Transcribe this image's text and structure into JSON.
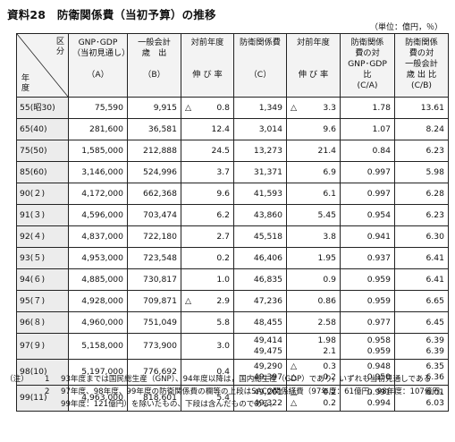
{
  "title": "資料28　防衛関係費（当初予算）の推移",
  "unit": "（単位：億円，％）",
  "header": {
    "diag_top": [
      "区",
      "分"
    ],
    "diag_bottom": [
      "年",
      "度"
    ],
    "columns": [
      {
        "lines": [
          "GNP･GDP",
          "（当初見通し）",
          "",
          "（A）"
        ]
      },
      {
        "lines": [
          "一般会計",
          "歳　出",
          "",
          "（B）"
        ]
      },
      {
        "lines": [
          "対前年度",
          "",
          "",
          "伸 び 率"
        ]
      },
      {
        "lines": [
          "防衛関係費",
          "",
          "",
          "（C）"
        ]
      },
      {
        "lines": [
          "対前年度",
          "",
          "",
          "伸 び 率"
        ]
      },
      {
        "lines": [
          "防衛関係",
          "費の対",
          "GNP･GDP",
          "比",
          "(C/A)"
        ]
      },
      {
        "lines": [
          "防衛関係",
          "費の対",
          "一般会計",
          "歳 出 比",
          "(C/B)"
        ]
      }
    ]
  },
  "rows": [
    {
      "year": "55(昭30)",
      "a": "75,590",
      "b": "9,915",
      "b_tri": "△",
      "b_rate": "0.8",
      "c": [
        "1,349"
      ],
      "c_tri": "△",
      "c_rate": [
        "3.3"
      ],
      "ca": [
        "1.78"
      ],
      "cb": [
        "13.61"
      ]
    },
    {
      "year": "65(40)",
      "a": "281,600",
      "b": "36,581",
      "b_tri": "",
      "b_rate": "12.4",
      "c": [
        "3,014"
      ],
      "c_tri": "",
      "c_rate": [
        "9.6"
      ],
      "ca": [
        "1.07"
      ],
      "cb": [
        "8.24"
      ]
    },
    {
      "year": "75(50)",
      "a": "1,585,000",
      "b": "212,888",
      "b_tri": "",
      "b_rate": "24.5",
      "c": [
        "13,273"
      ],
      "c_tri": "",
      "c_rate": [
        "21.4"
      ],
      "ca": [
        "0.84"
      ],
      "cb": [
        "6.23"
      ]
    },
    {
      "year": "85(60)",
      "a": "3,146,000",
      "b": "524,996",
      "b_tri": "",
      "b_rate": "3.7",
      "c": [
        "31,371"
      ],
      "c_tri": "",
      "c_rate": [
        "6.9"
      ],
      "ca": [
        "0.997"
      ],
      "cb": [
        "5.98"
      ]
    },
    {
      "year": "90(２)",
      "a": "4,172,000",
      "b": "662,368",
      "b_tri": "",
      "b_rate": "9.6",
      "c": [
        "41,593"
      ],
      "c_tri": "",
      "c_rate": [
        "6.1"
      ],
      "ca": [
        "0.997"
      ],
      "cb": [
        "6.28"
      ]
    },
    {
      "year": "91(３)",
      "a": "4,596,000",
      "b": "703,474",
      "b_tri": "",
      "b_rate": "6.2",
      "c": [
        "43,860"
      ],
      "c_tri": "",
      "c_rate": [
        "5.45"
      ],
      "ca": [
        "0.954"
      ],
      "cb": [
        "6.23"
      ]
    },
    {
      "year": "92(４)",
      "a": "4,837,000",
      "b": "722,180",
      "b_tri": "",
      "b_rate": "2.7",
      "c": [
        "45,518"
      ],
      "c_tri": "",
      "c_rate": [
        "3.8"
      ],
      "ca": [
        "0.941"
      ],
      "cb": [
        "6.30"
      ]
    },
    {
      "year": "93(５)",
      "a": "4,953,000",
      "b": "723,548",
      "b_tri": "",
      "b_rate": "0.2",
      "c": [
        "46,406"
      ],
      "c_tri": "",
      "c_rate": [
        "1.95"
      ],
      "ca": [
        "0.937"
      ],
      "cb": [
        "6.41"
      ]
    },
    {
      "year": "94(６)",
      "a": "4,885,000",
      "b": "730,817",
      "b_tri": "",
      "b_rate": "1.0",
      "c": [
        "46,835"
      ],
      "c_tri": "",
      "c_rate": [
        "0.9"
      ],
      "ca": [
        "0.959"
      ],
      "cb": [
        "6.41"
      ]
    },
    {
      "year": "95(７)",
      "a": "4,928,000",
      "b": "709,871",
      "b_tri": "△",
      "b_rate": "2.9",
      "c": [
        "47,236"
      ],
      "c_tri": "",
      "c_rate": [
        "0.86"
      ],
      "ca": [
        "0.959"
      ],
      "cb": [
        "6.65"
      ]
    },
    {
      "year": "96(８)",
      "a": "4,960,000",
      "b": "751,049",
      "b_tri": "",
      "b_rate": "5.8",
      "c": [
        "48,455"
      ],
      "c_tri": "",
      "c_rate": [
        "2.58"
      ],
      "ca": [
        "0.977"
      ],
      "cb": [
        "6.45"
      ]
    },
    {
      "year": "97(９)",
      "a": "5,158,000",
      "b": "773,900",
      "b_tri": "",
      "b_rate": "3.0",
      "c": [
        "49,414",
        "49,475"
      ],
      "c_tri": "",
      "c_rate": [
        "1.98",
        "2.1"
      ],
      "ca": [
        "0.958",
        "0.959"
      ],
      "cb": [
        "6.39",
        "6.39"
      ]
    },
    {
      "year": "98(10)",
      "a": "5,197,000",
      "b": "776,692",
      "b_tri": "",
      "b_rate": "0.4",
      "c": [
        "49,290",
        "49,397"
      ],
      "c_tri": "△",
      "c_rate": [
        "0.3",
        "0.2"
      ],
      "ca": [
        "0.948",
        "0.950"
      ],
      "cb": [
        "6.35",
        "6.36"
      ]
    },
    {
      "year": "99(11)",
      "a": "4,963,000",
      "b": "818,601",
      "b_tri": "",
      "b_rate": "5.4",
      "c": [
        "49,201",
        "49,322"
      ],
      "c_tri": "△",
      "c_rate": [
        "0.2",
        "0.2"
      ],
      "ca": [
        "0.991",
        "0.994"
      ],
      "cb": [
        "6.01",
        "6.03"
      ]
    }
  ],
  "notes": [
    {
      "label": "（注）",
      "num": "1",
      "text": "93年度までは国民総生産（GNP）、94年度以降は，国内総生産（GDP）であり，いずれも当初見通しである"
    },
    {
      "label": "",
      "num": "2",
      "text": "97年度、98年度、99年度の防衛関係費の欄等の上段はSACO関係経費（97年度：61億円、98年度：107億円、99年度：121億円）を除いたもの、下段は含んだものである。"
    }
  ]
}
